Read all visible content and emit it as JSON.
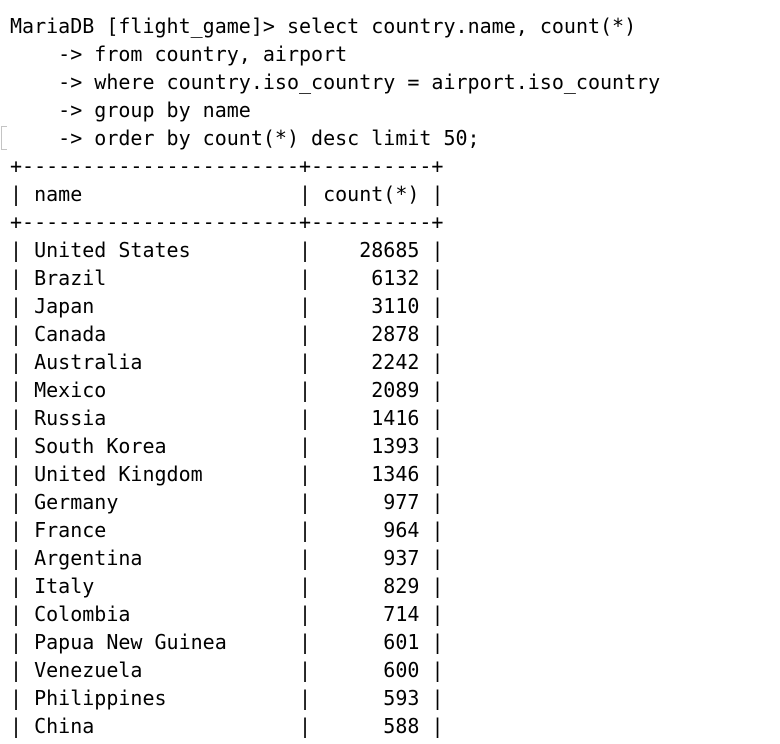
{
  "prompt": "MariaDB [flight_game]> ",
  "query_lines": [
    "select country.name, count(*)",
    "    -> from country, airport",
    "    -> where country.iso_country = airport.iso_country",
    "    -> group by name",
    "    -> order by count(*) desc limit 50;"
  ],
  "table": {
    "border": "+-----------------------+----------+",
    "columns": [
      "name",
      "count(*)"
    ],
    "rows": [
      {
        "name": "United States",
        "count": "28685"
      },
      {
        "name": "Brazil",
        "count": "6132"
      },
      {
        "name": "Japan",
        "count": "3110"
      },
      {
        "name": "Canada",
        "count": "2878"
      },
      {
        "name": "Australia",
        "count": "2242"
      },
      {
        "name": "Mexico",
        "count": "2089"
      },
      {
        "name": "Russia",
        "count": "1416"
      },
      {
        "name": "South Korea",
        "count": "1393"
      },
      {
        "name": "United Kingdom",
        "count": "1346"
      },
      {
        "name": "Germany",
        "count": "977"
      },
      {
        "name": "France",
        "count": "964"
      },
      {
        "name": "Argentina",
        "count": "937"
      },
      {
        "name": "Italy",
        "count": "829"
      },
      {
        "name": "Colombia",
        "count": "714"
      },
      {
        "name": "Papua New Guinea",
        "count": "601"
      },
      {
        "name": "Venezuela",
        "count": "600"
      },
      {
        "name": "Philippines",
        "count": "593"
      },
      {
        "name": "China",
        "count": "588"
      }
    ]
  }
}
